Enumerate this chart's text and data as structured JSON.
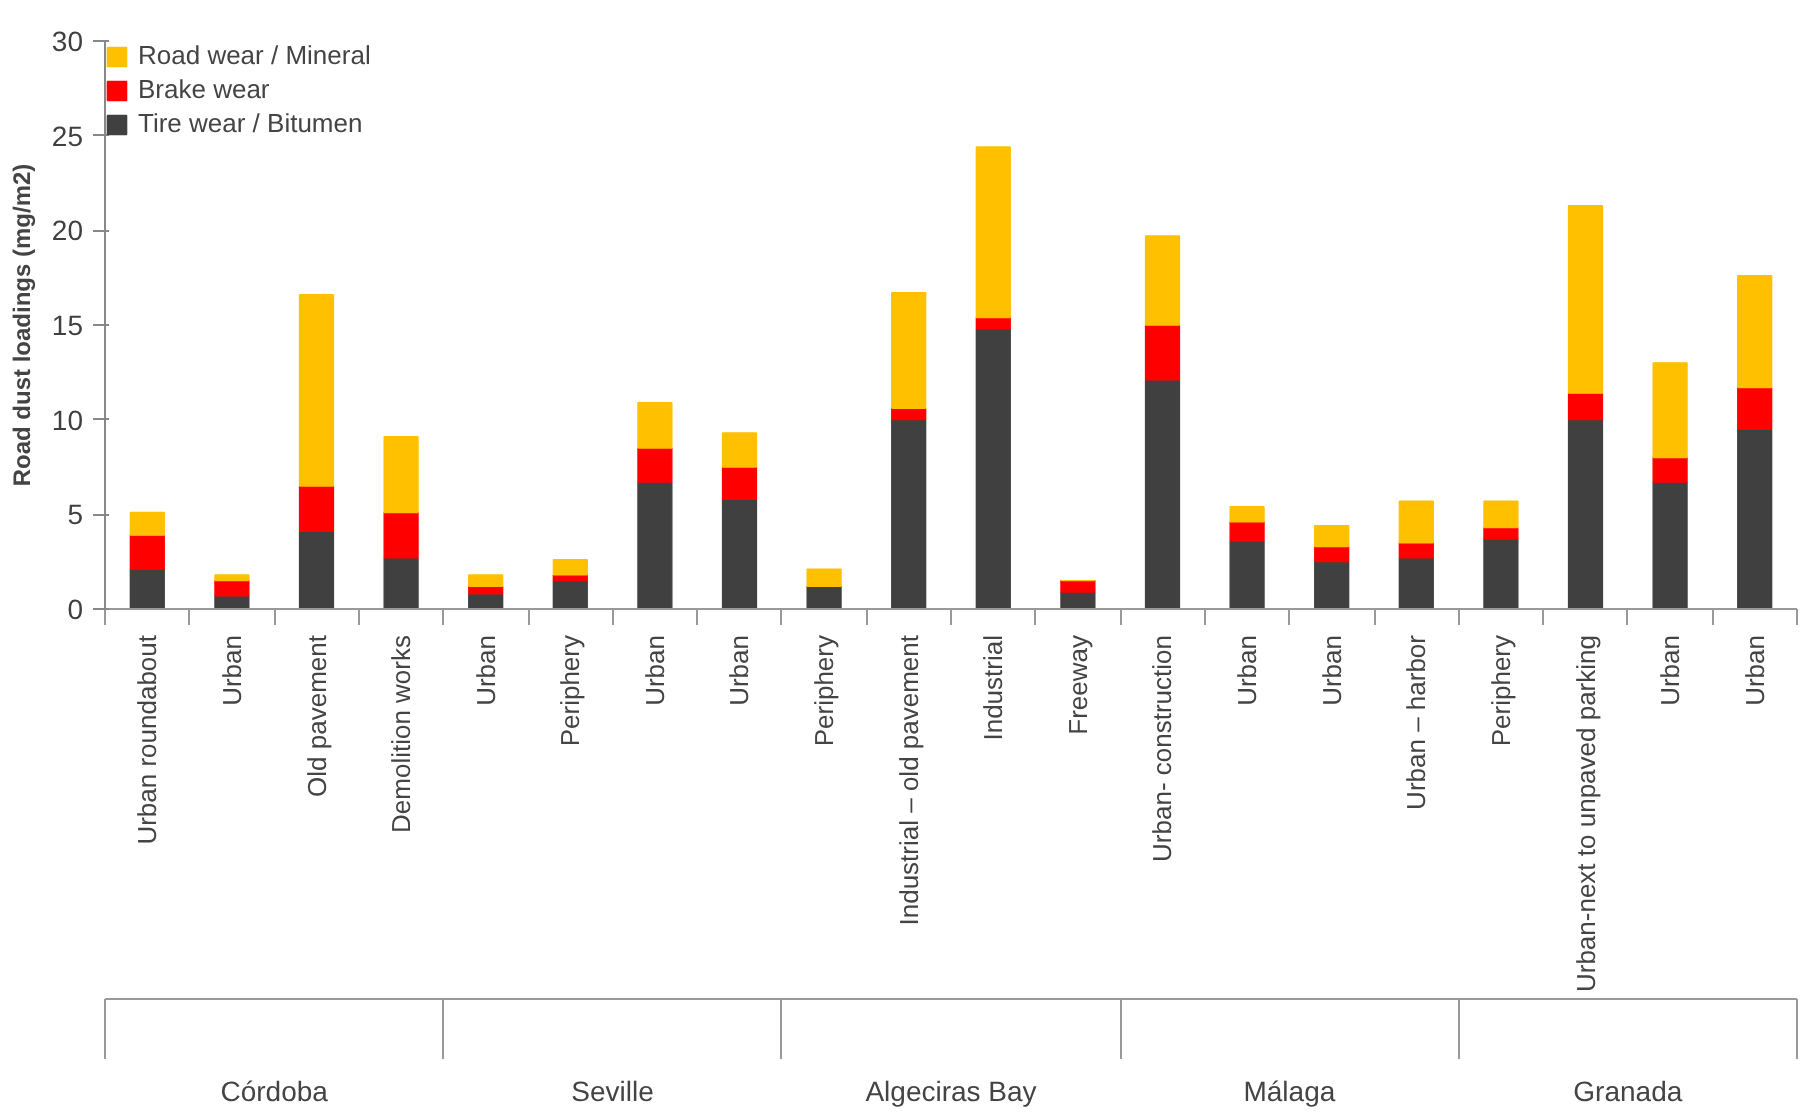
{
  "chart_data": {
    "type": "bar",
    "stacked": true,
    "ylabel": "Road dust loadings (mg/m2)",
    "ylim": [
      0,
      30
    ],
    "yticks": [
      0,
      5,
      10,
      15,
      20,
      25,
      30
    ],
    "legend": "top left",
    "categories": [
      "Urban roundabout",
      "Urban",
      "Old pavement",
      "Demolition works",
      "Urban",
      "Periphery",
      "Urban",
      "Urban",
      "Periphery",
      "Industrial – old pavement",
      "Industrial",
      "Freeway",
      "Urban- construction",
      "Urban",
      "Urban",
      "Urban – harbor",
      "Periphery",
      "Urban-next to unpaved parking",
      "Urban",
      "Urban"
    ],
    "series": [
      {
        "name": "Tire wear / Bitumen",
        "color": "#404040",
        "values": [
          2.1,
          0.7,
          4.1,
          2.7,
          0.8,
          1.5,
          6.7,
          5.8,
          1.2,
          10.0,
          14.8,
          0.9,
          12.1,
          3.6,
          2.5,
          2.7,
          3.7,
          10.0,
          6.7,
          9.5
        ]
      },
      {
        "name": "Brake wear",
        "color": "#ff0000",
        "values": [
          1.8,
          0.8,
          2.4,
          2.4,
          0.4,
          0.3,
          1.8,
          1.7,
          0.0,
          0.6,
          0.6,
          0.6,
          2.9,
          1.0,
          0.8,
          0.8,
          0.6,
          1.4,
          1.3,
          2.2
        ]
      },
      {
        "name": "Road wear / Mineral",
        "color": "#ffc000",
        "values": [
          1.2,
          0.3,
          10.1,
          4.0,
          0.6,
          0.8,
          2.4,
          1.8,
          0.9,
          6.1,
          9.0,
          0.0,
          4.7,
          0.8,
          1.1,
          2.2,
          1.4,
          9.9,
          5.0,
          5.9
        ]
      }
    ],
    "annotations": [
      "Córdoba",
      "Seville",
      "Algeciras Bay",
      "Málaga",
      "Granada"
    ]
  }
}
